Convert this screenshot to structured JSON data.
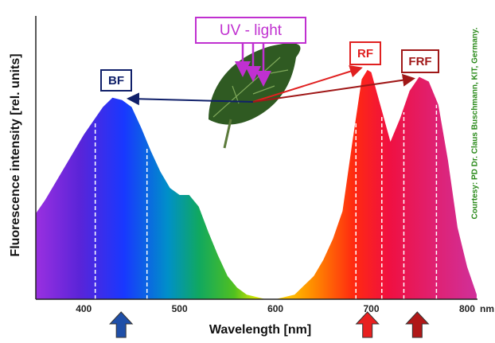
{
  "chart_data": {
    "type": "area",
    "x_label": "Wavelength [nm]",
    "x_unit_label": "nm",
    "y_label": "Fluorescence intensity  [rel. units]",
    "annotations": [
      "UV - light",
      "BF",
      "RF",
      "FRF"
    ],
    "credit": "Courtesy: PD Dr. Claus Buschmann, KIT, Germany.",
    "x": [
      350,
      360,
      380,
      400,
      420,
      430,
      440,
      450,
      460,
      470,
      480,
      490,
      500,
      510,
      520,
      530,
      540,
      550,
      560,
      570,
      580,
      590,
      600,
      620,
      640,
      650,
      660,
      670,
      680,
      690,
      696,
      700,
      710,
      720,
      730,
      740,
      750,
      760,
      770,
      780,
      790,
      800,
      810
    ],
    "values": [
      0.37,
      0.43,
      0.57,
      0.71,
      0.83,
      0.87,
      0.86,
      0.83,
      0.74,
      0.64,
      0.55,
      0.48,
      0.45,
      0.45,
      0.4,
      0.29,
      0.19,
      0.1,
      0.05,
      0.02,
      0.01,
      0.0,
      0.0,
      0.02,
      0.1,
      0.17,
      0.26,
      0.38,
      0.67,
      0.95,
      0.99,
      0.98,
      0.83,
      0.68,
      0.78,
      0.9,
      0.96,
      0.94,
      0.84,
      0.6,
      0.31,
      0.14,
      0.02
    ],
    "xlim": [
      350,
      810
    ],
    "ylim": [
      0,
      1
    ],
    "xticks": [
      400,
      500,
      600,
      700,
      800
    ],
    "dashed_lines": [
      412,
      466,
      684,
      711,
      734,
      768
    ],
    "excitation_arrows": [
      {
        "x": 439,
        "color": "#1f4fa8"
      },
      {
        "x": 696,
        "color": "#e82020"
      },
      {
        "x": 748,
        "color": "#b01818"
      }
    ]
  }
}
